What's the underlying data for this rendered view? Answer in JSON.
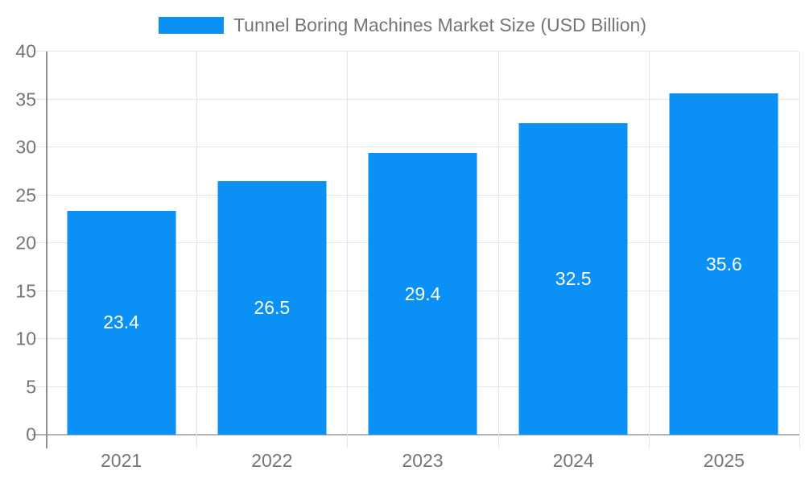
{
  "chart_data": {
    "type": "bar",
    "title": "Tunnel Boring Machines Market Size (USD Billion)",
    "categories": [
      "2021",
      "2022",
      "2023",
      "2024",
      "2025"
    ],
    "values": [
      23.4,
      26.5,
      29.4,
      32.5,
      35.6
    ],
    "series": [
      {
        "name": "Tunnel Boring Machines Market Size (USD Billion)",
        "values": [
          23.4,
          26.5,
          29.4,
          32.5,
          35.6
        ]
      }
    ],
    "xlabel": "",
    "ylabel": "",
    "ylim": [
      0,
      40
    ],
    "yticks": [
      0,
      5,
      10,
      15,
      20,
      25,
      30,
      35,
      40
    ],
    "grid": true,
    "legend_position": "top-center",
    "value_labels": [
      "23.4",
      "26.5",
      "29.4",
      "32.5",
      "35.6"
    ],
    "colors": {
      "bar": "#0b90f6",
      "value_label": "#ffffff",
      "axis_label": "#757575",
      "grid": "#e6e6e6",
      "axis_line": "#8f8f8f",
      "zero_line": "#b3b3b3",
      "background": "#ffffff"
    }
  },
  "legend": {
    "label": "Tunnel Boring Machines Market Size (USD Billion)"
  }
}
